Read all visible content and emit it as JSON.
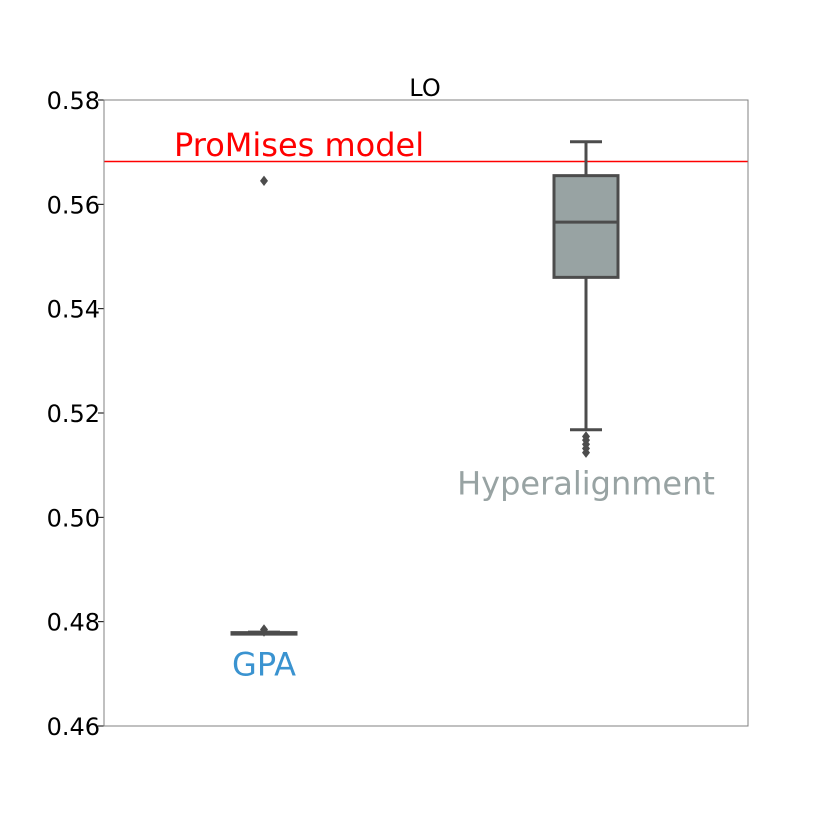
{
  "chart_data": {
    "type": "box",
    "title": "LO",
    "xlabel": "",
    "ylabel": "",
    "ylim": [
      0.46,
      0.58
    ],
    "yticks": [
      "0.46",
      "0.48",
      "0.50",
      "0.52",
      "0.54",
      "0.56",
      "0.58"
    ],
    "grid": false,
    "reference_line": {
      "label": "ProMises model",
      "value": 0.5682,
      "color": "#ff0000"
    },
    "boxes": [
      {
        "label": "GPA",
        "label_color": "#3a93d0",
        "box_color": "#4c4c4c",
        "whisker_low": 0.4777,
        "q1": 0.4777,
        "median": 0.4778,
        "q3": 0.4779,
        "whisker_high": 0.478,
        "outliers": [
          0.5645,
          0.4785,
          0.4781
        ]
      },
      {
        "label": "Hyperalignment",
        "label_color": "#98a3a3",
        "box_color": "#98a3a3",
        "whisker_low": 0.5168,
        "q1": 0.546,
        "median": 0.5566,
        "q3": 0.5655,
        "whisker_high": 0.572,
        "outliers": [
          0.5155,
          0.5148,
          0.514,
          0.5132,
          0.5124
        ]
      }
    ]
  }
}
